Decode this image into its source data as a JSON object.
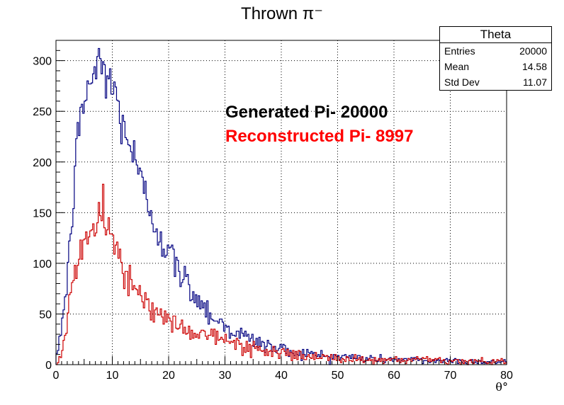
{
  "chart_data": {
    "type": "histogram",
    "title": "Thrown π⁻",
    "xlabel": "θ°",
    "ylabel": "",
    "xlim": [
      0,
      80
    ],
    "ylim": [
      0,
      320
    ],
    "x_ticks": [
      0,
      10,
      20,
      30,
      40,
      50,
      60,
      70,
      80
    ],
    "y_ticks": [
      0,
      50,
      100,
      150,
      200,
      250,
      300
    ],
    "grid": true,
    "bin_width": 0.25,
    "series": [
      {
        "name": "Generated Pi- 20000",
        "color": "#000080",
        "anchors": [
          [
            0,
            0
          ],
          [
            0.5,
            22
          ],
          [
            1,
            40
          ],
          [
            1.5,
            60
          ],
          [
            2,
            80
          ],
          [
            2.5,
            120
          ],
          [
            3,
            160
          ],
          [
            3.5,
            200
          ],
          [
            4,
            225
          ],
          [
            4.5,
            245
          ],
          [
            5,
            262
          ],
          [
            5.5,
            270
          ],
          [
            6,
            278
          ],
          [
            6.5,
            285
          ],
          [
            7,
            290
          ],
          [
            7.5,
            293
          ],
          [
            8,
            295
          ],
          [
            8.5,
            293
          ],
          [
            9,
            288
          ],
          [
            9.5,
            280
          ],
          [
            10,
            272
          ],
          [
            11,
            255
          ],
          [
            12,
            238
          ],
          [
            13,
            220
          ],
          [
            14,
            200
          ],
          [
            15,
            180
          ],
          [
            16,
            163
          ],
          [
            17,
            150
          ],
          [
            18,
            135
          ],
          [
            19,
            122
          ],
          [
            20,
            110
          ],
          [
            21,
            100
          ],
          [
            22,
            90
          ],
          [
            23,
            82
          ],
          [
            24,
            75
          ],
          [
            25,
            67
          ],
          [
            26,
            60
          ],
          [
            27,
            53
          ],
          [
            28,
            47
          ],
          [
            29,
            42
          ],
          [
            30,
            38
          ],
          [
            32,
            32
          ],
          [
            34,
            26
          ],
          [
            36,
            22
          ],
          [
            38,
            18
          ],
          [
            40,
            15
          ],
          [
            42,
            13
          ],
          [
            44,
            11
          ],
          [
            46,
            10
          ],
          [
            48,
            9
          ],
          [
            50,
            8
          ],
          [
            55,
            6
          ],
          [
            60,
            5
          ],
          [
            65,
            4
          ],
          [
            70,
            4
          ],
          [
            75,
            3
          ],
          [
            80,
            3
          ]
        ]
      },
      {
        "name": "Reconstructed Pi- 8997",
        "color": "#cc0000",
        "anchors": [
          [
            0,
            0
          ],
          [
            0.5,
            5
          ],
          [
            1,
            12
          ],
          [
            1.5,
            25
          ],
          [
            2,
            45
          ],
          [
            2.5,
            65
          ],
          [
            3,
            82
          ],
          [
            3.5,
            95
          ],
          [
            4,
            105
          ],
          [
            4.5,
            112
          ],
          [
            5,
            118
          ],
          [
            5.5,
            123
          ],
          [
            6,
            128
          ],
          [
            6.5,
            132
          ],
          [
            7,
            135
          ],
          [
            7.5,
            138
          ],
          [
            8,
            140
          ],
          [
            8.5,
            141
          ],
          [
            9,
            139
          ],
          [
            9.5,
            134
          ],
          [
            10,
            128
          ],
          [
            11,
            112
          ],
          [
            12,
            98
          ],
          [
            13,
            86
          ],
          [
            14,
            76
          ],
          [
            15,
            68
          ],
          [
            16,
            61
          ],
          [
            17,
            55
          ],
          [
            18,
            50
          ],
          [
            19,
            46
          ],
          [
            20,
            42
          ],
          [
            21,
            39
          ],
          [
            22,
            37
          ],
          [
            23,
            35
          ],
          [
            24,
            34
          ],
          [
            25,
            32
          ],
          [
            26,
            31
          ],
          [
            27,
            30
          ],
          [
            28,
            29
          ],
          [
            29,
            27
          ],
          [
            30,
            23
          ],
          [
            32,
            20
          ],
          [
            34,
            17
          ],
          [
            36,
            15
          ],
          [
            38,
            13
          ],
          [
            40,
            11
          ],
          [
            42,
            10
          ],
          [
            44,
            9
          ],
          [
            46,
            8
          ],
          [
            48,
            7
          ],
          [
            50,
            6
          ],
          [
            55,
            5
          ],
          [
            60,
            4
          ],
          [
            65,
            4
          ],
          [
            70,
            3
          ],
          [
            75,
            3
          ],
          [
            80,
            3
          ]
        ]
      }
    ],
    "stats_box": {
      "title": "Theta",
      "rows": [
        {
          "label": "Entries",
          "value": "20000"
        },
        {
          "label": "Mean",
          "value": "14.58"
        },
        {
          "label": "Std Dev",
          "value": "11.07"
        }
      ]
    },
    "annotations": [
      {
        "text": "Generated Pi- 20000",
        "color": "#000000"
      },
      {
        "text": "Reconstructed Pi- 8997",
        "color": "#ff0000"
      }
    ]
  }
}
